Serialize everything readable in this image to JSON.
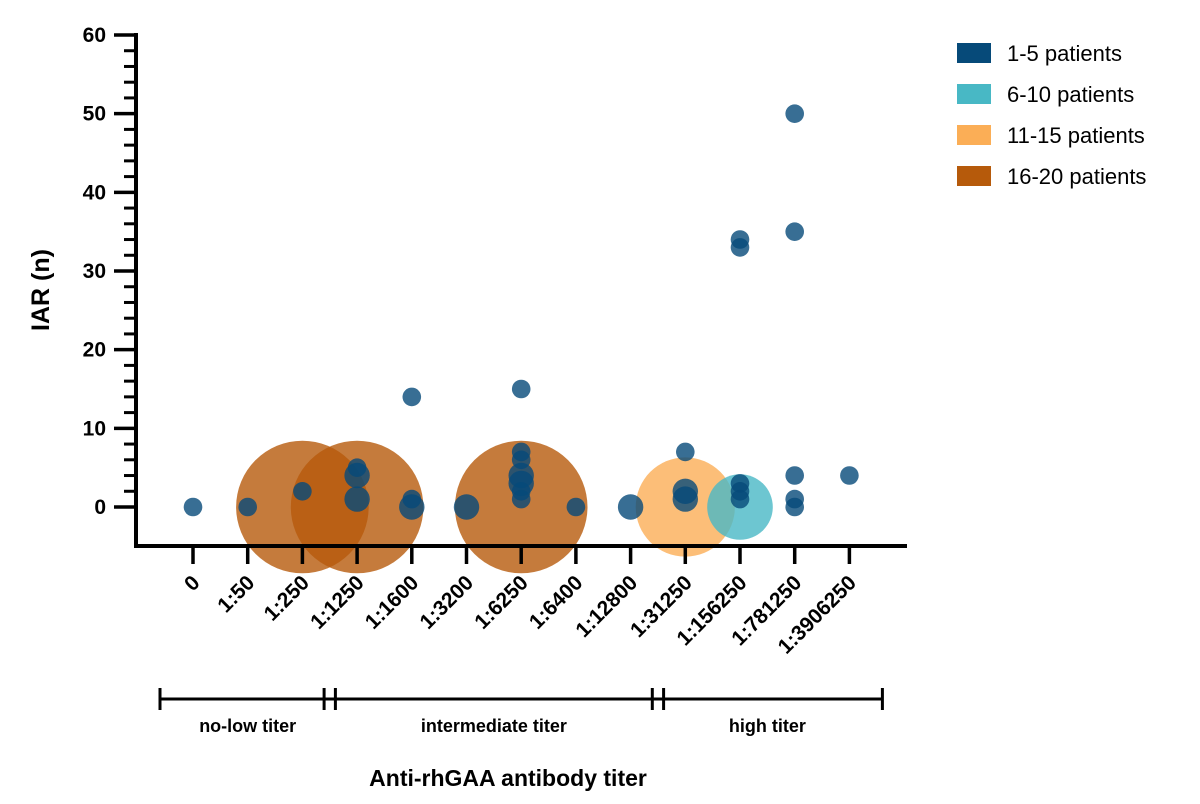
{
  "chart_data": {
    "type": "scatter",
    "subtype": "bubble",
    "title": "",
    "xlabel": "Anti-rhGAA antibody titer",
    "ylabel": "IAR (n)",
    "ylim": [
      0,
      60
    ],
    "yticks": [
      0,
      10,
      20,
      30,
      40,
      50,
      60
    ],
    "categories": [
      "0",
      "1:50",
      "1:250",
      "1:1250",
      "1:1600",
      "1:3200",
      "1:6250",
      "1:6400",
      "1:12800",
      "1:31250",
      "1:156250",
      "1:781250",
      "1:3906250"
    ],
    "groups": [
      {
        "label": "no-low titer",
        "from": "0",
        "to": "1:250"
      },
      {
        "label": "intermediate titer",
        "from": "1:1250",
        "to": "1:12800"
      },
      {
        "label": "high titer",
        "from": "1:31250",
        "to": "1:3906250"
      }
    ],
    "legend": {
      "position": "top-right",
      "entries": [
        {
          "label": "1-5 patients",
          "color": "#064a79"
        },
        {
          "label": "6-10 patients",
          "color": "#48b8c5"
        },
        {
          "label": "11-15 patients",
          "color": "#fbae56"
        },
        {
          "label": "16-20 patients",
          "color": "#b65a0b"
        }
      ]
    },
    "grid": false,
    "points": [
      {
        "x": "0",
        "y": 0,
        "n": 1
      },
      {
        "x": "1:50",
        "y": 0,
        "n": 1
      },
      {
        "x": "1:250",
        "y": 0,
        "n": 18
      },
      {
        "x": "1:250",
        "y": 2,
        "n": 1
      },
      {
        "x": "1:1250",
        "y": 0,
        "n": 18
      },
      {
        "x": "1:1250",
        "y": 1,
        "n": 2
      },
      {
        "x": "1:1250",
        "y": 4,
        "n": 2
      },
      {
        "x": "1:1250",
        "y": 5,
        "n": 1
      },
      {
        "x": "1:1600",
        "y": 0,
        "n": 2
      },
      {
        "x": "1:1600",
        "y": 1,
        "n": 1
      },
      {
        "x": "1:1600",
        "y": 14,
        "n": 1
      },
      {
        "x": "1:3200",
        "y": 0,
        "n": 2
      },
      {
        "x": "1:6250",
        "y": 0,
        "n": 18
      },
      {
        "x": "1:6250",
        "y": 1,
        "n": 1
      },
      {
        "x": "1:6250",
        "y": 2,
        "n": 1
      },
      {
        "x": "1:6250",
        "y": 3,
        "n": 2
      },
      {
        "x": "1:6250",
        "y": 4,
        "n": 2
      },
      {
        "x": "1:6250",
        "y": 6,
        "n": 1
      },
      {
        "x": "1:6250",
        "y": 7,
        "n": 1
      },
      {
        "x": "1:6250",
        "y": 15,
        "n": 1
      },
      {
        "x": "1:6400",
        "y": 0,
        "n": 1
      },
      {
        "x": "1:12800",
        "y": 0,
        "n": 2
      },
      {
        "x": "1:31250",
        "y": 0,
        "n": 13
      },
      {
        "x": "1:31250",
        "y": 1,
        "n": 2
      },
      {
        "x": "1:31250",
        "y": 2,
        "n": 2
      },
      {
        "x": "1:31250",
        "y": 7,
        "n": 1
      },
      {
        "x": "1:156250",
        "y": 0,
        "n": 8
      },
      {
        "x": "1:156250",
        "y": 1,
        "n": 1
      },
      {
        "x": "1:156250",
        "y": 2,
        "n": 1
      },
      {
        "x": "1:156250",
        "y": 3,
        "n": 1
      },
      {
        "x": "1:156250",
        "y": 33,
        "n": 1
      },
      {
        "x": "1:156250",
        "y": 34,
        "n": 1
      },
      {
        "x": "1:781250",
        "y": 0,
        "n": 1
      },
      {
        "x": "1:781250",
        "y": 1,
        "n": 1
      },
      {
        "x": "1:781250",
        "y": 4,
        "n": 1
      },
      {
        "x": "1:781250",
        "y": 35,
        "n": 1
      },
      {
        "x": "1:781250",
        "y": 50,
        "n": 1
      },
      {
        "x": "1:3906250",
        "y": 4,
        "n": 1
      }
    ]
  }
}
